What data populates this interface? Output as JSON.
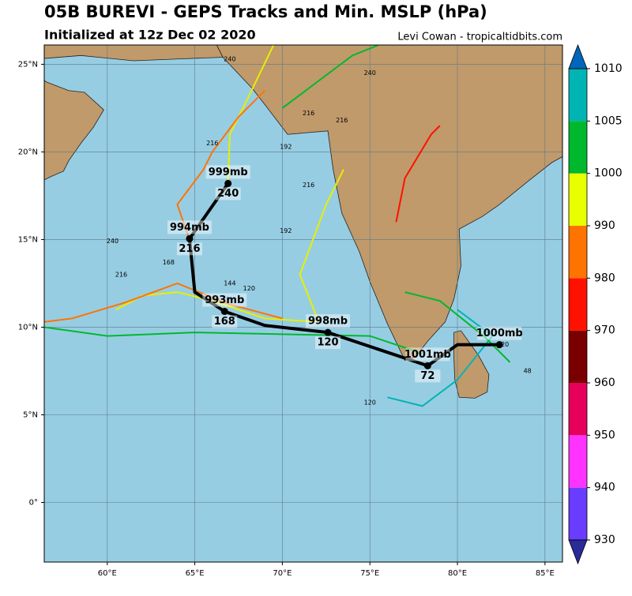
{
  "chart_data": {
    "type": "track",
    "title": "05B BUREVI - GEPS Tracks and Min. MSLP (hPa)",
    "subtitle": "Initialized at 12z Dec 02 2020",
    "credit": "Levi Cowan - tropicaltidbits.com",
    "xlim": [
      56.4,
      86.0
    ],
    "ylim": [
      -3.4,
      26.1
    ],
    "xticks": [
      {
        "value": 60,
        "label": "60°E"
      },
      {
        "value": 65,
        "label": "65°E"
      },
      {
        "value": 70,
        "label": "70°E"
      },
      {
        "value": 75,
        "label": "75°E"
      },
      {
        "value": 80,
        "label": "80°E"
      },
      {
        "value": 85,
        "label": "85°E"
      }
    ],
    "yticks": [
      {
        "value": 0,
        "label": "0°"
      },
      {
        "value": 5,
        "label": "5°N"
      },
      {
        "value": 10,
        "label": "10°N"
      },
      {
        "value": 15,
        "label": "15°N"
      },
      {
        "value": 20,
        "label": "20°N"
      },
      {
        "value": 25,
        "label": "25°N"
      }
    ],
    "grid": true,
    "mean_track": {
      "color": "#000000",
      "x": [
        82.4,
        80.0,
        78.3,
        75.9,
        72.6,
        69.0,
        66.7,
        65.0,
        64.9,
        64.7,
        66.9
      ],
      "y": [
        9.0,
        9.0,
        7.8,
        8.6,
        9.7,
        10.1,
        10.9,
        12.0,
        13.0,
        15.05,
        18.2
      ],
      "pressure": [
        1000,
        null,
        1001,
        null,
        998,
        null,
        993,
        null,
        null,
        994,
        999
      ],
      "pressure_labels": [
        "1000mb",
        null,
        "1001mb",
        null,
        "998mb",
        null,
        "993mb",
        null,
        null,
        "994mb",
        "999mb"
      ],
      "hours": [
        null,
        null,
        72,
        null,
        120,
        null,
        168,
        null,
        null,
        216,
        240
      ]
    },
    "tracks": [
      {
        "color": "#e6f000",
        "x": [
          66.9,
          67.0,
          68.0,
          69.5
        ],
        "y": [
          18.2,
          21.0,
          23.0,
          26.1
        ]
      },
      {
        "color": "#ff7400",
        "x": [
          64.7,
          64.0,
          65.5,
          66.0,
          67.5,
          69.0
        ],
        "y": [
          15.0,
          17.0,
          19.0,
          20.0,
          22.0,
          23.5
        ]
      },
      {
        "color": "#00b82e",
        "x": [
          70.0,
          72.0,
          74.0,
          75.5
        ],
        "y": [
          22.5,
          24.0,
          25.5,
          26.1
        ]
      },
      {
        "color": "#ff1100",
        "x": [
          76.5,
          77.0,
          78.5,
          79.0
        ],
        "y": [
          16.0,
          18.5,
          21.0,
          21.5
        ]
      },
      {
        "color": "#00b4b4",
        "x": [
          80.0,
          82.0,
          80.0,
          78.0,
          76.0
        ],
        "y": [
          11.0,
          9.5,
          7.0,
          5.5,
          6.0
        ]
      },
      {
        "color": "#e6f000",
        "x": [
          60.5,
          62.0,
          64.0,
          66.0,
          69.0,
          72.0
        ],
        "y": [
          11.0,
          11.8,
          12.0,
          11.5,
          10.5,
          10.3
        ]
      },
      {
        "color": "#00b82e",
        "x": [
          56.4,
          60.0,
          65.0,
          70.0,
          75.0,
          78.0
        ],
        "y": [
          10.0,
          9.5,
          9.7,
          9.6,
          9.5,
          8.5
        ]
      },
      {
        "color": "#ff7400",
        "x": [
          56.4,
          58.0,
          61.0,
          64.0,
          67.0,
          70.0
        ],
        "y": [
          10.3,
          10.5,
          11.4,
          12.5,
          11.3,
          10.5
        ]
      },
      {
        "color": "#e6f000",
        "x": [
          72.0,
          71.0,
          72.5,
          73.5
        ],
        "y": [
          10.5,
          13.0,
          17.0,
          19.0
        ]
      },
      {
        "color": "#00b82e",
        "x": [
          77.0,
          79.0,
          81.5,
          83.0
        ],
        "y": [
          12.0,
          11.5,
          9.5,
          8.0
        ]
      }
    ],
    "hour_notes": [
      {
        "text": 240,
        "x": 67.0,
        "y": 25.3
      },
      {
        "text": 240,
        "x": 75.0,
        "y": 24.5
      },
      {
        "text": 216,
        "x": 66.0,
        "y": 20.5
      },
      {
        "text": 216,
        "x": 71.5,
        "y": 22.2
      },
      {
        "text": 216,
        "x": 73.4,
        "y": 21.8
      },
      {
        "text": 216,
        "x": 71.5,
        "y": 18.1
      },
      {
        "text": 192,
        "x": 70.2,
        "y": 20.3
      },
      {
        "text": 192,
        "x": 70.2,
        "y": 15.5
      },
      {
        "text": 240,
        "x": 60.3,
        "y": 14.9
      },
      {
        "text": 216,
        "x": 60.8,
        "y": 13.0
      },
      {
        "text": 168,
        "x": 63.5,
        "y": 13.7
      },
      {
        "text": 144,
        "x": 67.0,
        "y": 12.5
      },
      {
        "text": 120,
        "x": 68.1,
        "y": 12.2
      },
      {
        "text": 120,
        "x": 82.6,
        "y": 9.0
      },
      {
        "text": 120,
        "x": 75.0,
        "y": 5.7
      },
      {
        "text": 48,
        "x": 84.0,
        "y": 7.5
      }
    ],
    "colorbar": {
      "levels": [
        930,
        940,
        950,
        960,
        970,
        980,
        990,
        1000,
        1005,
        1010
      ],
      "colors": [
        "#6a3cff",
        "#ff33ff",
        "#e6005c",
        "#7a0000",
        "#ff1100",
        "#ff7400",
        "#e8ff00",
        "#00b82e",
        "#00b4b4"
      ],
      "under_color": "#2a2a99",
      "over_color": "#0066bb"
    }
  }
}
